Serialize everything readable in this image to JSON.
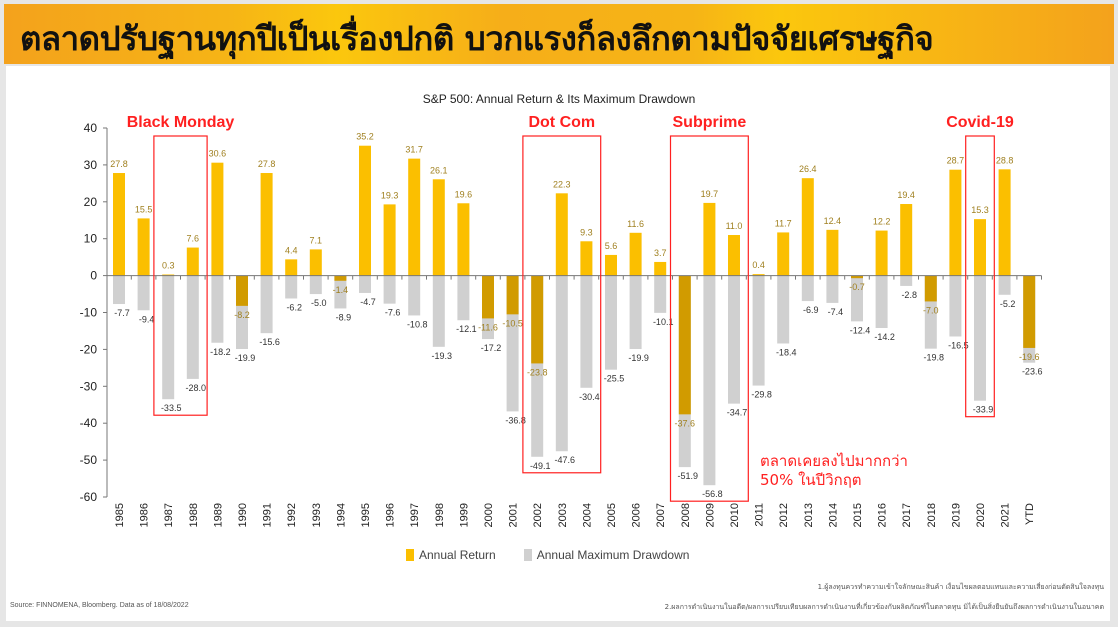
{
  "header": {
    "title": "ตลาดปรับฐานทุกปีเป็นเรื่องปกติ บวกแรงก็ลงลึกตามปัจจัยเศรษฐกิจ"
  },
  "chart_data": {
    "type": "bar",
    "title": "S&P 500: Annual Return & Its Maximum Drawdown",
    "xlabel": "",
    "ylabel": "",
    "ylim": [
      -60,
      40
    ],
    "yticks": [
      40,
      30,
      20,
      10,
      0,
      -10,
      -20,
      -30,
      -40,
      -50,
      -60
    ],
    "categories": [
      "1985",
      "1986",
      "1987",
      "1988",
      "1989",
      "1990",
      "1991",
      "1992",
      "1993",
      "1994",
      "1995",
      "1996",
      "1997",
      "1998",
      "1999",
      "2000",
      "2001",
      "2002",
      "2003",
      "2004",
      "2005",
      "2006",
      "2007",
      "2008",
      "2009",
      "2010",
      "2011",
      "2012",
      "2013",
      "2014",
      "2015",
      "2016",
      "2017",
      "2018",
      "2019",
      "2020",
      "2021",
      "YTD"
    ],
    "series": [
      {
        "name": "Annual Return",
        "color": "#fbbf00",
        "negative_color": "#d19b00",
        "values": [
          27.8,
          15.5,
          0.3,
          7.6,
          30.6,
          -8.2,
          27.8,
          4.4,
          7.1,
          -1.4,
          35.2,
          19.3,
          31.7,
          26.1,
          19.6,
          -11.6,
          -10.5,
          -23.8,
          22.3,
          9.3,
          5.6,
          11.6,
          3.7,
          -37.6,
          19.7,
          11.0,
          0.4,
          11.7,
          26.4,
          12.4,
          -0.7,
          12.2,
          19.4,
          -7.0,
          28.7,
          15.3,
          28.8,
          -19.6
        ]
      },
      {
        "name": "Annual Maximum Drawdown",
        "color": "#d0d0d0",
        "values": [
          -7.7,
          -9.4,
          -33.5,
          -28.0,
          -18.2,
          -19.9,
          -15.6,
          -6.2,
          -5.0,
          -8.9,
          -4.7,
          -7.6,
          -10.8,
          -19.3,
          -12.1,
          -17.2,
          -36.8,
          -49.1,
          -47.6,
          -30.4,
          -25.5,
          -19.9,
          -10.1,
          -51.9,
          -56.8,
          -34.7,
          -29.8,
          -18.4,
          -6.9,
          -7.4,
          -12.4,
          -14.2,
          -2.8,
          -19.8,
          -16.5,
          -33.9,
          -5.2,
          -23.6
        ]
      }
    ],
    "legend": "bottom-center",
    "grid": false,
    "annotations": [
      {
        "label": "Black Monday",
        "from": "1987",
        "to": "1988"
      },
      {
        "label": "Dot Com",
        "from": "2002",
        "to": "2004"
      },
      {
        "label": "Subprime",
        "from": "2008",
        "to": "2010"
      },
      {
        "label": "Covid-19",
        "from": "2020",
        "to": "2020"
      }
    ],
    "annotation_color": "#ff2020"
  },
  "note": {
    "line1": "ตลาดเคยลงไปมากกว่า",
    "line2": "50% ในปีวิกฤต"
  },
  "footer": {
    "source": "Source: FINNOMENA, Bloomberg. Data as of 18/08/2022",
    "footnote1": "1.ผู้ลงทุนควรทำความเข้าใจลักษณะสินค้า เงื่อนไขผลตอบแทนและความเสี่ยงก่อนตัดสินใจลงทุน",
    "footnote2": "2.ผลการดำเนินงานในอดีต/ผลการเปรียบเทียบผลการดำเนินงานที่เกี่ยวข้องกับผลิตภัณฑ์ในตลาดทุน มิได้เป็นสิ่งยืนยันถึงผลการดำเนินงานในอนาคต"
  }
}
